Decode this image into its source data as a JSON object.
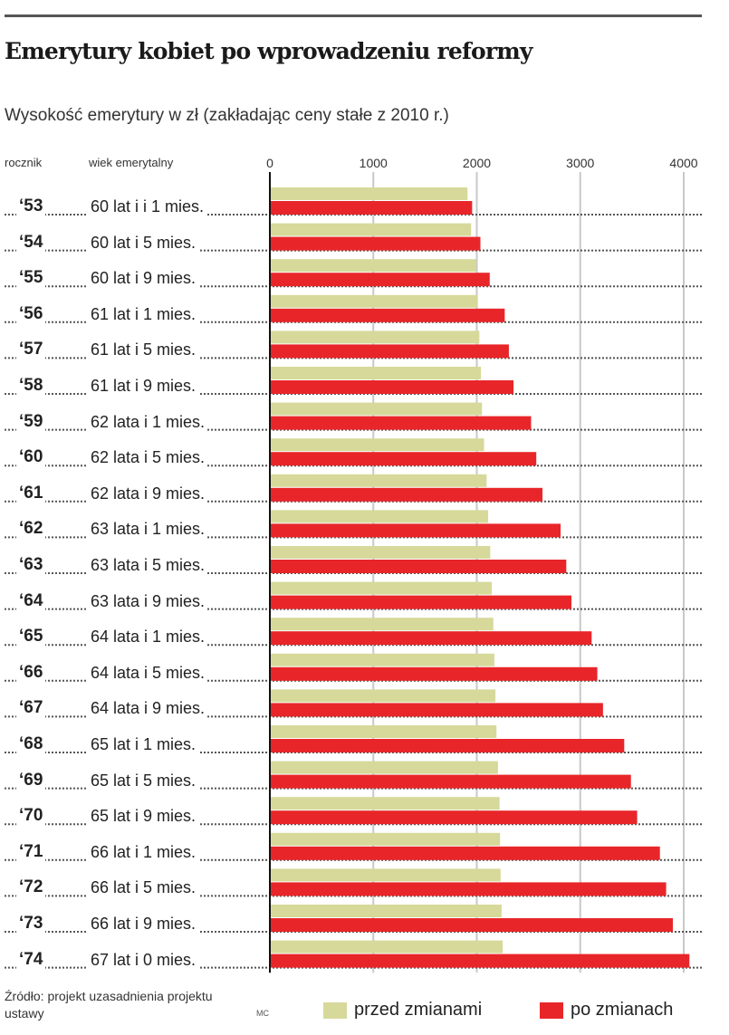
{
  "colors": {
    "before": "#d6d99a",
    "after": "#e8262a",
    "grid": "#c8c8c8"
  },
  "chart_data": {
    "type": "bar",
    "orientation": "horizontal",
    "title": "Emerytury kobiet po wprowadzeniu reformy",
    "subtitle": "Wysokość emerytury w zł (zakładając ceny stałe z 2010 r.)",
    "col_headers": {
      "year": "rocznik",
      "age": "wiek emerytalny"
    },
    "xlim": [
      0,
      4000
    ],
    "xticks": [
      "0",
      "1000",
      "2000",
      "3000",
      "4000"
    ],
    "xtick_values": [
      0,
      1000,
      2000,
      3000,
      4000
    ],
    "categories": [
      "‘53",
      "‘54",
      "‘55",
      "‘56",
      "‘57",
      "‘58",
      "‘59",
      "‘60",
      "‘61",
      "‘62",
      "‘63",
      "‘64",
      "‘65",
      "‘66",
      "‘67",
      "‘68",
      "‘69",
      "‘70",
      "‘71",
      "‘72",
      "‘73",
      "‘74"
    ],
    "ages": [
      "60 lat i i 1 mies.",
      "60 lat i 5 mies.",
      "60 lat i 9 mies.",
      "61 lat i 1 mies.",
      "61 lat i 5 mies.",
      "61 lat i 9 mies.",
      "62 lata i 1 mies.",
      "62 lata i 5 mies.",
      "62 lata i 9 mies.",
      "63 lata i 1 mies.",
      "63 lata i 5 mies.",
      "63 lata i 9 mies.",
      "64 lata i 1 mies.",
      "64 lata i 5 mies.",
      "64 lata i 9 mies.",
      "65 lat i 1 mies.",
      "65 lat i 5 mies.",
      "65 lat i 9 mies.",
      "66 lat i 1 mies.",
      "66 lat i 5 mies.",
      "66 lat i 9 mies.",
      "67 lat i 0 mies."
    ],
    "series": [
      {
        "name": "przed zmianami",
        "values": [
          1910,
          1945,
          1995,
          2010,
          2025,
          2040,
          2050,
          2070,
          2095,
          2110,
          2130,
          2145,
          2160,
          2170,
          2180,
          2190,
          2205,
          2220,
          2225,
          2230,
          2240,
          2250
        ]
      },
      {
        "name": "po zmianach",
        "values": [
          1955,
          2035,
          2125,
          2270,
          2310,
          2355,
          2525,
          2575,
          2635,
          2810,
          2865,
          2915,
          3110,
          3165,
          3220,
          3425,
          3490,
          3550,
          3770,
          3830,
          3895,
          4055
        ]
      }
    ],
    "legend": "bottom-right",
    "source": "Źródło: projekt uzasadnienia projektu ustawy",
    "credit": "MC"
  }
}
